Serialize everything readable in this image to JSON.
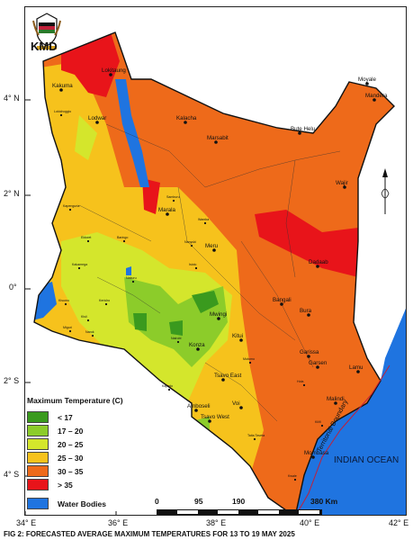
{
  "logo": {
    "text": "KMD",
    "icon": "coat-of-arms-icon"
  },
  "axes": {
    "lat_ticks": [
      "4° N",
      "2° N",
      "0°",
      "2° S",
      "4° S"
    ],
    "lon_ticks": [
      "34° E",
      "36° E",
      "38° E",
      "40° E",
      "42° E"
    ]
  },
  "legend": {
    "title": "Maximum Temperature (C)",
    "items": [
      {
        "label": "< 17",
        "color": "#3a9a1e"
      },
      {
        "label": "17 – 20",
        "color": "#8ccc2a"
      },
      {
        "label": "20 – 25",
        "color": "#d4e62c"
      },
      {
        "label": "25 – 30",
        "color": "#f6c21c"
      },
      {
        "label": "30 – 35",
        "color": "#ee6a1a"
      },
      {
        "label": "> 35",
        "color": "#e8141a"
      }
    ],
    "water": {
      "label": "Water Bodies",
      "color": "#1f74e0"
    }
  },
  "scale": {
    "labels": [
      "0",
      "95",
      "190",
      "380 Km"
    ]
  },
  "towns": [
    "Lokitaung",
    "Kakuma",
    "Lodwar",
    "Kalacha",
    "Marsabit",
    "Bute Helu",
    "Moyale",
    "Wajir",
    "Mandera",
    "Marala",
    "Meru",
    "Dadaab",
    "Garissa",
    "Mwingi",
    "Bangali",
    "Bura",
    "Garsen",
    "Lamu",
    "Kitui",
    "Konza",
    "Tsavo East",
    "Amboseli",
    "Tsavo West",
    "Malindi",
    "Voi",
    "Mombasa",
    "Narok",
    "Kisumu",
    "Kakamega",
    "Nairobi",
    "Nanyuki",
    "Isiolo",
    "Lokichoggio",
    "Kapenguria",
    "Eldoret",
    "Nakuru",
    "Kericho",
    "Kisii",
    "Migori",
    "Kajiado",
    "Kilifi",
    "Kwale",
    "Taita Taveta",
    "Samburu",
    "Baringo",
    "Wamba",
    "Hola",
    "Mutomo"
  ],
  "annotations": {
    "ocean": "INDIAN OCEAN",
    "boundary": "Territorial Boundary"
  },
  "caption": "FIG 2: FORECASTED AVERAGE MAXIMUM TEMPERATURES FOR 13 TO 19 MAY 2025"
}
